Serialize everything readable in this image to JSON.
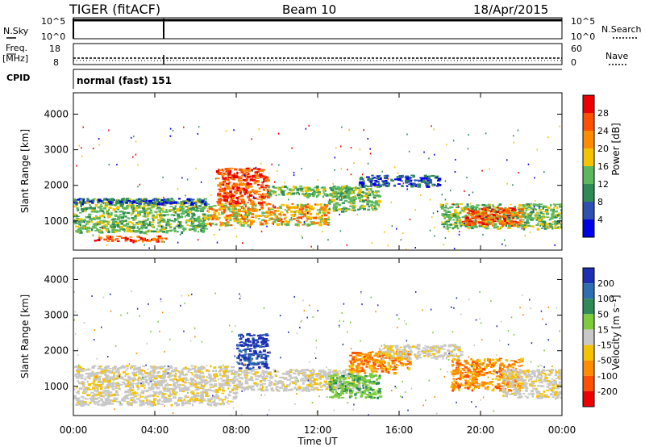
{
  "header": {
    "station": "TIGER (fitACF)",
    "beam": "Beam 10",
    "date": "18/Apr/2015"
  },
  "status_panels": {
    "nsky": {
      "label": "N.Sky",
      "ticks": [
        "10^5",
        "10^0"
      ]
    },
    "nsearch": {
      "label": "N.Search",
      "ticks": [
        "10^5",
        "10^0"
      ]
    },
    "freq": {
      "label_line1": "Freq.",
      "label_line2": "[MHz]",
      "ticks": [
        "18",
        "8"
      ]
    },
    "nave": {
      "label": "Nave",
      "ticks": [
        "60",
        "0"
      ]
    },
    "cpid": {
      "label": "CPID",
      "value": "normal (fast) 151"
    }
  },
  "colors": {
    "power": [
      "#0000e6",
      "#2e50b0",
      "#2e8b57",
      "#5cb85c",
      "#f5c400",
      "#ff8c00",
      "#ff5000",
      "#ee0000"
    ],
    "velocity": [
      "#1e2fb4",
      "#2d6fb0",
      "#2e8b57",
      "#7ccc3c",
      "#c8c8c8",
      "#f5c400",
      "#ff8c00",
      "#ff5000",
      "#ee0000"
    ]
  },
  "chart_data": [
    {
      "type": "heatmap",
      "name": "power",
      "xlabel": "",
      "ylabel": "Slant Range [km]",
      "yticks": [
        "1000",
        "2000",
        "3000",
        "4000"
      ],
      "colorbar_label": "Power [dB]",
      "colorbar_ticks": [
        "4",
        "8",
        "12",
        "16",
        "20",
        "24",
        "28"
      ],
      "xlim": [
        0,
        24
      ],
      "ylim": [
        180,
        4600
      ],
      "regions": [
        {
          "x": [
            0,
            6.5
          ],
          "y": [
            700,
            1650
          ],
          "level": "green"
        },
        {
          "x": [
            0,
            6.5
          ],
          "y": [
            1500,
            1650
          ],
          "level": "blue"
        },
        {
          "x": [
            1.0,
            4.5
          ],
          "y": [
            450,
            600
          ],
          "level": "red"
        },
        {
          "x": [
            6.5,
            12.5
          ],
          "y": [
            900,
            1500
          ],
          "level": "orange"
        },
        {
          "x": [
            7.0,
            9.5
          ],
          "y": [
            1500,
            2500
          ],
          "level": "red"
        },
        {
          "x": [
            9.5,
            13.5
          ],
          "y": [
            1700,
            2000
          ],
          "level": "green"
        },
        {
          "x": [
            12.5,
            15
          ],
          "y": [
            1300,
            2000
          ],
          "level": "green"
        },
        {
          "x": [
            14,
            18
          ],
          "y": [
            2000,
            2300
          ],
          "level": "blue"
        },
        {
          "x": [
            18,
            24
          ],
          "y": [
            800,
            1500
          ],
          "level": "green"
        },
        {
          "x": [
            19,
            22
          ],
          "y": [
            900,
            1400
          ],
          "level": "red"
        }
      ]
    },
    {
      "type": "heatmap",
      "name": "velocity",
      "xlabel": "Time UT",
      "ylabel": "Slant Range [km]",
      "yticks": [
        "1000",
        "2000",
        "3000",
        "4000"
      ],
      "xticks": [
        "00:00",
        "04:00",
        "08:00",
        "12:00",
        "16:00",
        "20:00",
        "00:00"
      ],
      "colorbar_label": "Velocity [m s⁻¹]",
      "colorbar_ticks": [
        "200",
        "100",
        "50",
        "15",
        "-15",
        "-50",
        "-100",
        "-200"
      ],
      "xlim": [
        0,
        24
      ],
      "ylim": [
        180,
        4600
      ],
      "regions": [
        {
          "x": [
            0,
            8
          ],
          "y": [
            500,
            1600
          ],
          "level": "grey"
        },
        {
          "x": [
            8,
            9.5
          ],
          "y": [
            1500,
            2500
          ],
          "level": "blue"
        },
        {
          "x": [
            8,
            14
          ],
          "y": [
            900,
            1500
          ],
          "level": "grey"
        },
        {
          "x": [
            12.5,
            15
          ],
          "y": [
            700,
            1400
          ],
          "level": "green"
        },
        {
          "x": [
            13.5,
            16.5
          ],
          "y": [
            1400,
            2000
          ],
          "level": "orange"
        },
        {
          "x": [
            15,
            19
          ],
          "y": [
            1800,
            2200
          ],
          "level": "grey"
        },
        {
          "x": [
            18.5,
            22
          ],
          "y": [
            900,
            1800
          ],
          "level": "orange"
        },
        {
          "x": [
            21,
            24
          ],
          "y": [
            700,
            1500
          ],
          "level": "grey"
        }
      ]
    }
  ]
}
